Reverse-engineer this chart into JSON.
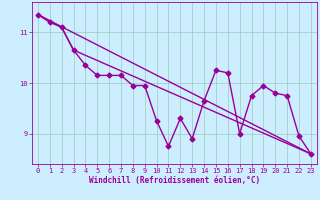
{
  "xlabel": "Windchill (Refroidissement éolien,°C)",
  "ylabel": "",
  "background_color": "#cceeff",
  "line_color": "#990099",
  "xlim": [
    -0.5,
    23.5
  ],
  "ylim": [
    8.4,
    11.6
  ],
  "yticks": [
    9,
    10,
    11
  ],
  "xticks": [
    0,
    1,
    2,
    3,
    4,
    5,
    6,
    7,
    8,
    9,
    10,
    11,
    12,
    13,
    14,
    15,
    16,
    17,
    18,
    19,
    20,
    21,
    22,
    23
  ],
  "series_main": [
    [
      0,
      11.35
    ],
    [
      1,
      11.2
    ],
    [
      2,
      11.1
    ],
    [
      3,
      10.65
    ],
    [
      4,
      10.35
    ],
    [
      5,
      10.15
    ],
    [
      6,
      10.15
    ],
    [
      7,
      10.15
    ],
    [
      8,
      9.95
    ],
    [
      9,
      9.95
    ],
    [
      10,
      9.25
    ],
    [
      11,
      8.75
    ],
    [
      12,
      9.3
    ],
    [
      13,
      8.9
    ],
    [
      14,
      9.65
    ],
    [
      15,
      10.25
    ],
    [
      16,
      10.2
    ],
    [
      17,
      9.0
    ],
    [
      18,
      9.75
    ],
    [
      19,
      9.95
    ],
    [
      20,
      9.8
    ],
    [
      21,
      9.75
    ],
    [
      22,
      8.95
    ],
    [
      23,
      8.6
    ]
  ],
  "series_straight": [
    [
      0,
      11.35
    ],
    [
      23,
      8.6
    ]
  ],
  "series_third": [
    [
      0,
      11.35
    ],
    [
      2,
      11.1
    ],
    [
      3,
      10.65
    ],
    [
      23,
      8.6
    ]
  ],
  "grid_color": "#99ccbb",
  "marker": "D",
  "markersize": 2.5,
  "linewidth": 1.0
}
